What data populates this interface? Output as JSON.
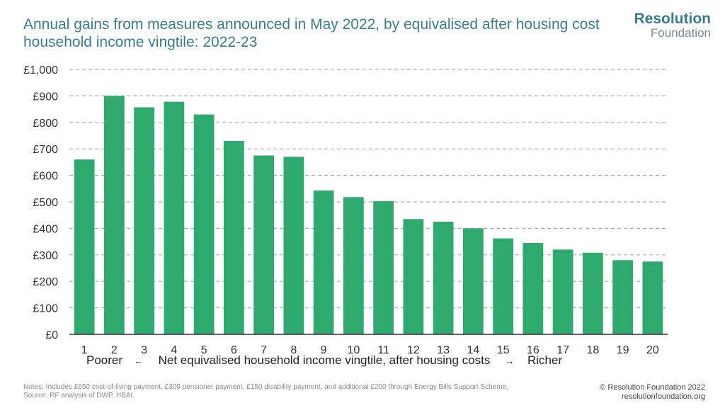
{
  "colors": {
    "bar": "#2eaa6e",
    "title": "#3a7d8c",
    "grid": "#aaaaaa",
    "axis": "#333333"
  },
  "logo": {
    "line1": "Resolution",
    "line2": "Foundation"
  },
  "notes": {
    "line1": "Notes: Includes £650 cost-of-living payment, £300 pensioner payment, £150 disability payment, and additional £200 through Energy Bills Support Scheme.",
    "line2": "Source: RF analysis of DWP, HBAI."
  },
  "credit": {
    "line1": "© Resolution Foundation 2022",
    "line2": "resolutionfoundation.org"
  },
  "chart_data": {
    "type": "bar",
    "title": "Annual gains from measures announced in May 2022, by equivalised after housing cost household income vingtile: 2022-23",
    "categories": [
      "1",
      "2",
      "3",
      "4",
      "5",
      "6",
      "7",
      "8",
      "9",
      "10",
      "11",
      "12",
      "13",
      "14",
      "15",
      "16",
      "17",
      "18",
      "19",
      "20"
    ],
    "values": [
      660,
      900,
      857,
      878,
      830,
      730,
      675,
      670,
      543,
      518,
      503,
      435,
      425,
      400,
      362,
      345,
      320,
      308,
      280,
      275
    ],
    "ylim": [
      0,
      1000
    ],
    "yticks": [
      0,
      100,
      200,
      300,
      400,
      500,
      600,
      700,
      800,
      900,
      1000
    ],
    "ytick_labels": [
      "£0",
      "£100",
      "£200",
      "£300",
      "£400",
      "£500",
      "£600",
      "£700",
      "£800",
      "£900",
      "£1,000"
    ],
    "xlabel": "Net equivalised household income vingtile, after housing costs",
    "xlabel_left": "Poorer",
    "xlabel_right": "Richer",
    "arrow_left": "←",
    "arrow_right": "→",
    "grid": true,
    "legend": "none"
  }
}
